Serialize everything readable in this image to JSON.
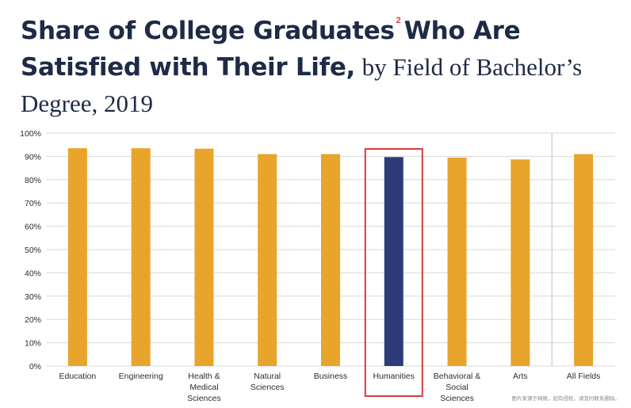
{
  "title": {
    "bold_part": "Share of College Graduates",
    "footnote": "2",
    "bold_part2": "Who Are Satisfied with Their Life,",
    "serif_part": "by Field of Bachelor’s Degree, 2019"
  },
  "watermark": "图片来源于网络，如有侵权，请及时联系删除。",
  "colors": {
    "bar": "#E9A42C",
    "highlight_bar": "#2B3C78",
    "highlight_box": "#D93A3A",
    "grid": "#d9d9d9"
  },
  "chart_data": {
    "type": "bar",
    "title": "Share of College Graduates Who Are Satisfied with Their Life, by Field of Bachelor’s Degree, 2019",
    "categories": [
      [
        "Education"
      ],
      [
        "Engineering"
      ],
      [
        "Health &",
        "Medical",
        "Sciences"
      ],
      [
        "Natural",
        "Sciences"
      ],
      [
        "Business"
      ],
      [
        "Humanities"
      ],
      [
        "Behavioral &",
        "Social",
        "Sciences"
      ],
      [
        "Arts"
      ],
      [
        "All Fields"
      ]
    ],
    "values": [
      93.5,
      93.5,
      93.3,
      91,
      91,
      89.7,
      89.5,
      88.7,
      91
    ],
    "highlight_index": 5,
    "ylim": [
      0,
      100
    ],
    "yticks": [
      "0%",
      "10%",
      "20%",
      "30%",
      "40%",
      "50%",
      "60%",
      "70%",
      "80%",
      "90%",
      "100%"
    ],
    "grid": true
  }
}
